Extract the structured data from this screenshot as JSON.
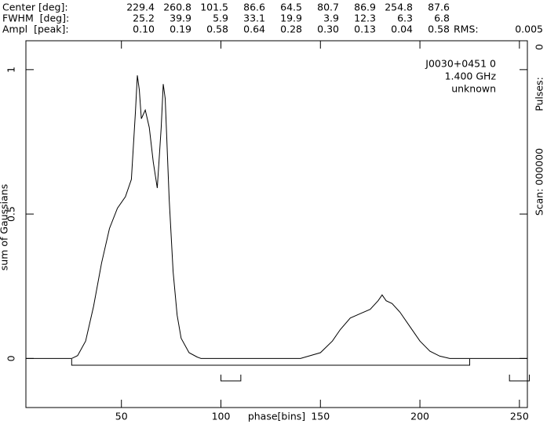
{
  "header": {
    "rows": [
      {
        "label": "Center [deg]:",
        "values": [
          "229.4",
          "260.8",
          "101.5",
          "86.6",
          "64.5",
          "80.7",
          "86.9",
          "254.8",
          "87.6"
        ]
      },
      {
        "label": "FWHM  [deg]:",
        "values": [
          "25.2",
          "39.9",
          "5.9",
          "33.1",
          "19.9",
          "3.9",
          "12.3",
          "6.3",
          "6.8"
        ]
      },
      {
        "label": "Ampl  [peak]:",
        "values": [
          "0.10",
          "0.19",
          "0.58",
          "0.64",
          "0.28",
          "0.30",
          "0.13",
          "0.04",
          "0.58"
        ]
      }
    ],
    "rms_label": "RMS:",
    "rms": "0.005"
  },
  "side": {
    "count": "0",
    "pulses": "Pulses:",
    "scan": "Scan: 000000"
  },
  "chart_data": {
    "type": "line",
    "annotations": [
      "J0030+0451 0",
      "1.400 GHz",
      "unknown"
    ],
    "x_label": "phase[bins]",
    "y_label": "sum of Gaussians",
    "xlim": [
      2,
      254
    ],
    "ylim": [
      -0.17,
      1.1
    ],
    "xticks": [
      50,
      100,
      150,
      200,
      250
    ],
    "yticks": [
      0,
      0.5,
      1
    ],
    "x": [
      2,
      25,
      28,
      32,
      36,
      40,
      44,
      48,
      52,
      55,
      57,
      58,
      59,
      60,
      62,
      64,
      66,
      68,
      70,
      71,
      72,
      74,
      76,
      78,
      80,
      84,
      88,
      90,
      140,
      150,
      156,
      160,
      165,
      170,
      175,
      179,
      181,
      183,
      186,
      190,
      195,
      200,
      205,
      210,
      215,
      254
    ],
    "series": [
      {
        "color": "#000000",
        "values": [
          0,
          0,
          0.01,
          0.06,
          0.18,
          0.33,
          0.45,
          0.52,
          0.56,
          0.62,
          0.85,
          0.98,
          0.93,
          0.83,
          0.86,
          0.8,
          0.68,
          0.59,
          0.8,
          0.95,
          0.9,
          0.55,
          0.3,
          0.15,
          0.07,
          0.02,
          0.005,
          0,
          0,
          0.02,
          0.06,
          0.1,
          0.14,
          0.155,
          0.17,
          0.2,
          0.22,
          0.2,
          0.19,
          0.16,
          0.11,
          0.06,
          0.025,
          0.008,
          0,
          0
        ]
      }
    ],
    "windows": [
      [
        25,
        225
      ],
      [
        100,
        110
      ],
      [
        245,
        255
      ]
    ]
  }
}
